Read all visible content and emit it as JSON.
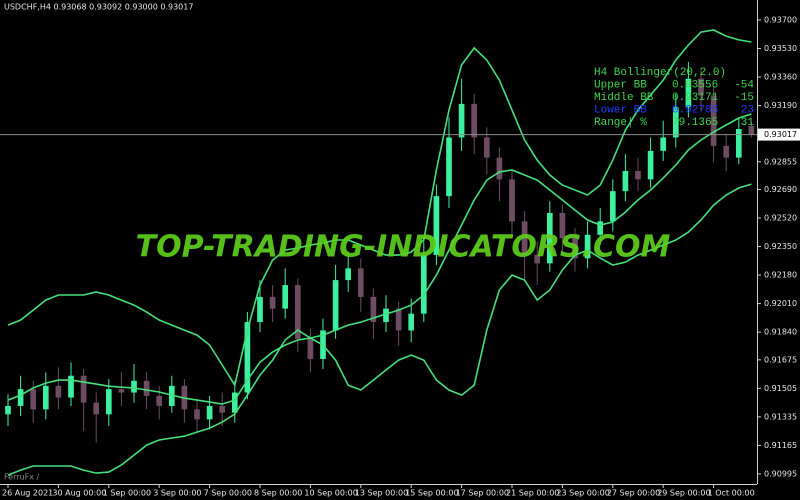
{
  "chart_data": {
    "type": "candlestick",
    "title": "USDCHF,H4  0.93068 0.93092 0.93000 0.93017",
    "watermark": "TOP-TRADING-INDICATORS.COM",
    "footer": "FerruFx /",
    "up_color": "#3cf0a0",
    "down_color": "#6e4d62",
    "categories": [
      "26 Aug 2021",
      null,
      null,
      null,
      "30 Aug 00:00",
      null,
      null,
      null,
      "1 Sep 00:00",
      null,
      null,
      null,
      "3 Sep 00:00",
      null,
      null,
      null,
      "7 Sep 00:00",
      null,
      null,
      null,
      "8 Sep 00:00",
      null,
      null,
      null,
      "10 Sep 00:00",
      null,
      null,
      null,
      "13 Sep 00:00",
      null,
      null,
      null,
      "15 Sep 00:00",
      null,
      null,
      null,
      "17 Sep 00:00",
      null,
      null,
      null,
      "21 Sep 00:00",
      null,
      null,
      null,
      "23 Sep 00:00",
      null,
      null,
      null,
      "27 Sep 00:00",
      null,
      null,
      null,
      "29 Sep 00:00",
      null,
      null,
      null,
      "1 Oct 00:00",
      null,
      null,
      null
    ],
    "open": [
      0.9135,
      0.914,
      0.915,
      0.9138,
      0.9152,
      0.9145,
      0.9158,
      0.9142,
      0.9135,
      0.915,
      0.9148,
      0.9155,
      0.9146,
      0.914,
      0.9152,
      0.9138,
      0.9132,
      0.914,
      0.9136,
      0.9148,
      0.919,
      0.9205,
      0.9198,
      0.9212,
      0.918,
      0.9168,
      0.9185,
      0.9215,
      0.9222,
      0.9205,
      0.919,
      0.9198,
      0.9185,
      0.9195,
      0.923,
      0.9265,
      0.93,
      0.932,
      0.93,
      0.9288,
      0.9275,
      0.925,
      0.923,
      0.9225,
      0.9255,
      0.924,
      0.9228,
      0.9242,
      0.925,
      0.9268,
      0.928,
      0.9275,
      0.9292,
      0.93,
      0.9318,
      0.9335,
      0.9325,
      0.9295,
      0.9288,
      0.93068
    ],
    "high": [
      0.9147,
      0.9158,
      0.9155,
      0.916,
      0.9163,
      0.9166,
      0.9162,
      0.9148,
      0.9156,
      0.916,
      0.9165,
      0.916,
      0.9152,
      0.9158,
      0.9156,
      0.9144,
      0.9146,
      0.9148,
      0.9155,
      0.9196,
      0.9215,
      0.9212,
      0.9222,
      0.9216,
      0.9186,
      0.9192,
      0.9224,
      0.9232,
      0.9228,
      0.921,
      0.9206,
      0.9202,
      0.9204,
      0.9238,
      0.9272,
      0.9312,
      0.9335,
      0.9326,
      0.9306,
      0.9294,
      0.928,
      0.9256,
      0.9238,
      0.9262,
      0.926,
      0.9246,
      0.925,
      0.9258,
      0.9275,
      0.929,
      0.9288,
      0.93,
      0.931,
      0.9326,
      0.9345,
      0.934,
      0.933,
      0.9302,
      0.9312,
      0.93092
    ],
    "low": [
      0.9128,
      0.9134,
      0.913,
      0.9132,
      0.9138,
      0.914,
      0.9125,
      0.9118,
      0.9128,
      0.914,
      0.9142,
      0.9138,
      0.9132,
      0.9136,
      0.913,
      0.9124,
      0.9126,
      0.9128,
      0.913,
      0.9144,
      0.9184,
      0.919,
      0.9192,
      0.9172,
      0.916,
      0.9162,
      0.918,
      0.9208,
      0.9196,
      0.918,
      0.9184,
      0.9176,
      0.9178,
      0.919,
      0.9224,
      0.9258,
      0.9292,
      0.929,
      0.9278,
      0.9262,
      0.924,
      0.9215,
      0.9212,
      0.922,
      0.9232,
      0.922,
      0.9222,
      0.9236,
      0.9244,
      0.9262,
      0.9268,
      0.927,
      0.9286,
      0.9294,
      0.9312,
      0.9316,
      0.9285,
      0.928,
      0.9284,
      0.93
    ],
    "close": [
      0.914,
      0.915,
      0.9138,
      0.9152,
      0.9145,
      0.9158,
      0.9142,
      0.9135,
      0.915,
      0.9148,
      0.9155,
      0.9146,
      0.914,
      0.9152,
      0.9138,
      0.9132,
      0.914,
      0.9136,
      0.9148,
      0.919,
      0.9205,
      0.9198,
      0.9212,
      0.918,
      0.9168,
      0.9185,
      0.9215,
      0.9222,
      0.9205,
      0.919,
      0.9198,
      0.9185,
      0.9195,
      0.923,
      0.9265,
      0.93,
      0.932,
      0.93,
      0.9288,
      0.9275,
      0.925,
      0.923,
      0.9225,
      0.9255,
      0.924,
      0.9228,
      0.9242,
      0.925,
      0.9268,
      0.928,
      0.9275,
      0.9292,
      0.93,
      0.9318,
      0.9335,
      0.9325,
      0.9295,
      0.9288,
      0.9305,
      0.93017
    ],
    "series": [
      {
        "name": "Upper BB",
        "color": "#44e07c",
        "values": [
          0.91882,
          0.91912,
          0.91971,
          0.92031,
          0.92061,
          0.92061,
          0.92061,
          0.92079,
          0.92061,
          0.92031,
          0.92001,
          0.91959,
          0.91912,
          0.91882,
          0.91852,
          0.91822,
          0.91763,
          0.91644,
          0.91524,
          0.91852,
          0.9212,
          0.92269,
          0.92329,
          0.92341,
          0.92359,
          0.92371,
          0.92389,
          0.92389,
          0.92359,
          0.92329,
          0.92299,
          0.92299,
          0.92317,
          0.92389,
          0.92806,
          0.93163,
          0.93432,
          0.93533,
          0.93461,
          0.93342,
          0.93163,
          0.92985,
          0.92865,
          0.92776,
          0.92716,
          0.92687,
          0.92657,
          0.92716,
          0.92865,
          0.93044,
          0.93163,
          0.93253,
          0.93342,
          0.93461,
          0.93551,
          0.93628,
          0.9364,
          0.93604,
          0.93581,
          0.93569
        ]
      },
      {
        "name": "Middle BB",
        "color": "#44e07c",
        "values": [
          0.91435,
          0.91465,
          0.91507,
          0.91536,
          0.91554,
          0.91554,
          0.91542,
          0.9153,
          0.91518,
          0.91512,
          0.91507,
          0.91495,
          0.91483,
          0.91465,
          0.91447,
          0.91435,
          0.91423,
          0.91411,
          0.91435,
          0.91554,
          0.91661,
          0.91721,
          0.91763,
          0.91793,
          0.91805,
          0.91822,
          0.91852,
          0.91882,
          0.919,
          0.91924,
          0.91948,
          0.91971,
          0.92001,
          0.92061,
          0.9218,
          0.92329,
          0.92478,
          0.92627,
          0.92746,
          0.92794,
          0.92806,
          0.92776,
          0.92746,
          0.92687,
          0.92627,
          0.92567,
          0.92508,
          0.92478,
          0.92496,
          0.92555,
          0.92627,
          0.92687,
          0.92758,
          0.92836,
          0.92925,
          0.92985,
          0.93032,
          0.93074,
          0.93116,
          0.9314
        ]
      },
      {
        "name": "Lower BB",
        "color": "#44e07c",
        "values": [
          0.90988,
          0.91018,
          0.91042,
          0.91042,
          0.91042,
          0.91042,
          0.91018,
          0.91,
          0.91006,
          0.91048,
          0.91107,
          0.91167,
          0.91197,
          0.91209,
          0.9122,
          0.91244,
          0.91268,
          0.91304,
          0.91352,
          0.91465,
          0.91584,
          0.91673,
          0.91793,
          0.91852,
          0.91805,
          0.91763,
          0.91673,
          0.91524,
          0.91495,
          0.91554,
          0.91614,
          0.91673,
          0.91703,
          0.91673,
          0.91554,
          0.91495,
          0.91465,
          0.91524,
          0.91852,
          0.92091,
          0.9218,
          0.9215,
          0.92031,
          0.92091,
          0.9221,
          0.92299,
          0.92329,
          0.92281,
          0.9224,
          0.92257,
          0.92299,
          0.92329,
          0.92359,
          0.92389,
          0.92436,
          0.92508,
          0.92597,
          0.92657,
          0.92699,
          0.92722
        ]
      }
    ],
    "ylim": [
      0.90935,
      0.93819
    ],
    "yticks": [
      {
        "value": 0.937,
        "label": "0.93700"
      },
      {
        "value": 0.9353,
        "label": "0.93530"
      },
      {
        "value": 0.9336,
        "label": "0.93360"
      },
      {
        "value": 0.9319,
        "label": "0.93190"
      },
      {
        "value": 0.92855,
        "label": "0.92855"
      },
      {
        "value": 0.9269,
        "label": "0.92690"
      },
      {
        "value": 0.9252,
        "label": "0.92520"
      },
      {
        "value": 0.9235,
        "label": "0.92350"
      },
      {
        "value": 0.9218,
        "label": "0.92180"
      },
      {
        "value": 0.9201,
        "label": "0.92010"
      },
      {
        "value": 0.9184,
        "label": "0.91840"
      },
      {
        "value": 0.91675,
        "label": "0.91675"
      },
      {
        "value": 0.91505,
        "label": "0.91505"
      },
      {
        "value": 0.91335,
        "label": "0.91335"
      },
      {
        "value": 0.91165,
        "label": "0.91165"
      },
      {
        "value": 0.90995,
        "label": "0.90995"
      }
    ],
    "last_price": {
      "value": 0.93017,
      "label": "0.93017"
    },
    "panel": {
      "title": "H4 Bollinger(20,2.0)",
      "rows": [
        {
          "value": "0.93556",
          "points": "-54",
          "color": "#3fd64a"
        },
        {
          "value": "0.93171",
          "points": "-15",
          "color": "#3fd64a"
        },
        {
          "value": "0.92785",
          "points": "23",
          "color": "#1e3cff"
        }
      ],
      "range": {
        "label": "Range| %",
        "value": "79.1365",
        "points": "31",
        "color": "#3fd64a"
      }
    }
  }
}
